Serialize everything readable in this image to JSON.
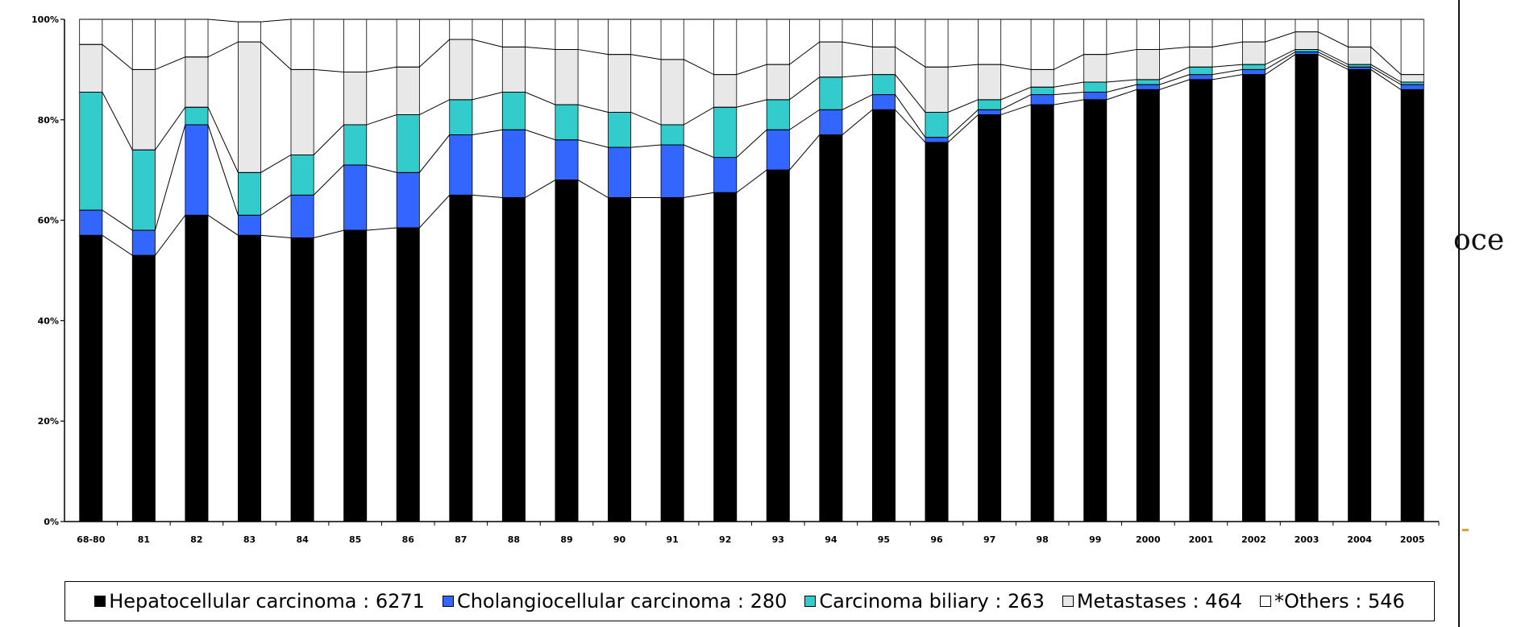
{
  "chart_data": {
    "type": "bar",
    "stacked": true,
    "categories": [
      "68-80",
      "81",
      "82",
      "83",
      "84",
      "85",
      "86",
      "87",
      "88",
      "89",
      "90",
      "91",
      "92",
      "93",
      "94",
      "95",
      "96",
      "97",
      "98",
      "99",
      "2000",
      "2001",
      "2002",
      "2003",
      "2004",
      "2005"
    ],
    "yticks": [
      "100%",
      "80%",
      "60%",
      "40%",
      "20%",
      "0%"
    ],
    "ylim": [
      0,
      100
    ],
    "series": [
      {
        "name": "Hepatocellular carcinoma : 6271",
        "color": "#000000",
        "values": [
          57,
          53,
          61,
          57,
          56.5,
          58,
          58.5,
          65,
          64.5,
          68,
          64.5,
          64.5,
          65.5,
          70,
          77,
          82,
          75.5,
          81,
          83,
          84,
          86,
          88,
          89,
          93,
          90,
          86
        ]
      },
      {
        "name": "Cholangiocellular carcinoma : 280",
        "color": "#3366ff",
        "values": [
          5,
          5,
          18,
          4,
          8.5,
          13,
          11,
          12,
          13.5,
          8,
          10,
          10.5,
          7,
          8,
          5,
          3,
          1,
          1,
          2,
          1.5,
          1,
          1,
          1,
          0.5,
          0.5,
          1
        ]
      },
      {
        "name": "Carcinoma biliary : 263",
        "color": "#33cccc",
        "values": [
          23.5,
          16,
          3.5,
          8.5,
          8,
          8,
          11.5,
          7,
          7.5,
          7,
          7,
          4,
          10,
          6,
          6.5,
          4,
          5,
          2,
          1.5,
          2,
          1,
          1.5,
          1,
          0.5,
          0.5,
          0.5
        ]
      },
      {
        "name": "Metastases : 464",
        "color": "#e8e8e8",
        "values": [
          9.5,
          16,
          10,
          26,
          17,
          10.5,
          9.5,
          12,
          9,
          11,
          11.5,
          13,
          6.5,
          7,
          7,
          5.5,
          9,
          7,
          3.5,
          5.5,
          6,
          4,
          4.5,
          3.5,
          3.5,
          1.5
        ]
      },
      {
        "name": "*Others : 546",
        "color": "#ffffff",
        "values": [
          5,
          10,
          7.5,
          4,
          10,
          10.5,
          9.5,
          4,
          5.5,
          6,
          7,
          8,
          11,
          9,
          4.5,
          5.5,
          9.5,
          9,
          10,
          7,
          6,
          5.5,
          4.5,
          2.5,
          5.5,
          11
        ]
      }
    ]
  },
  "legend": {
    "items": [
      {
        "label": "Hepatocellular carcinoma : 6271",
        "color": "#000000"
      },
      {
        "label": "Cholangiocellular carcinoma : 280",
        "color": "#3366ff"
      },
      {
        "label": "Carcinoma biliary : 263",
        "color": "#33cccc"
      },
      {
        "label": "Metastases : 464",
        "color": "#e8e8e8"
      },
      {
        "label": "*Others : 546",
        "color": "#ffffff"
      }
    ]
  },
  "side_text": "oce"
}
